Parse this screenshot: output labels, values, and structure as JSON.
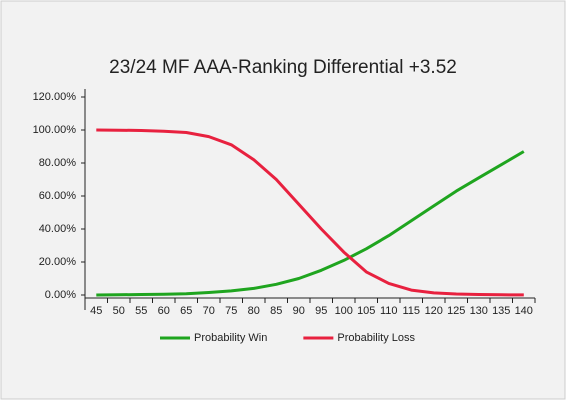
{
  "chart_data": {
    "type": "line",
    "title": "23/24 MF AAA-Ranking Differential +3.52",
    "categories": [
      "45",
      "50",
      "55",
      "60",
      "65",
      "70",
      "75",
      "80",
      "85",
      "90",
      "95",
      "100",
      "105",
      "110",
      "115",
      "120",
      "125",
      "130",
      "135",
      "140"
    ],
    "series": [
      {
        "name": "Probability Win",
        "color": "#1fa51f",
        "values": [
          0,
          0.1,
          0.3,
          0.5,
          0.8,
          1.5,
          2.5,
          4,
          6.5,
          10,
          15,
          21,
          28,
          36,
          45,
          54,
          63,
          71,
          79,
          87
        ]
      },
      {
        "name": "Probability Loss",
        "color": "#e8213f",
        "values": [
          100,
          99.9,
          99.7,
          99.3,
          98.5,
          96,
          91,
          82,
          70,
          55,
          40,
          26,
          14,
          7,
          3,
          1.3,
          0.6,
          0.3,
          0.1,
          0.05
        ]
      }
    ],
    "ylim": [
      0,
      120
    ],
    "yticks": [
      {
        "value": 0,
        "label": "0.00%"
      },
      {
        "value": 20,
        "label": "20.00%"
      },
      {
        "value": 40,
        "label": "40.00%"
      },
      {
        "value": 60,
        "label": "60.00%"
      },
      {
        "value": 80,
        "label": "80.00%"
      },
      {
        "value": 100,
        "label": "100.00%"
      },
      {
        "value": 120,
        "label": "120.00%"
      }
    ],
    "legend": "bottom"
  }
}
